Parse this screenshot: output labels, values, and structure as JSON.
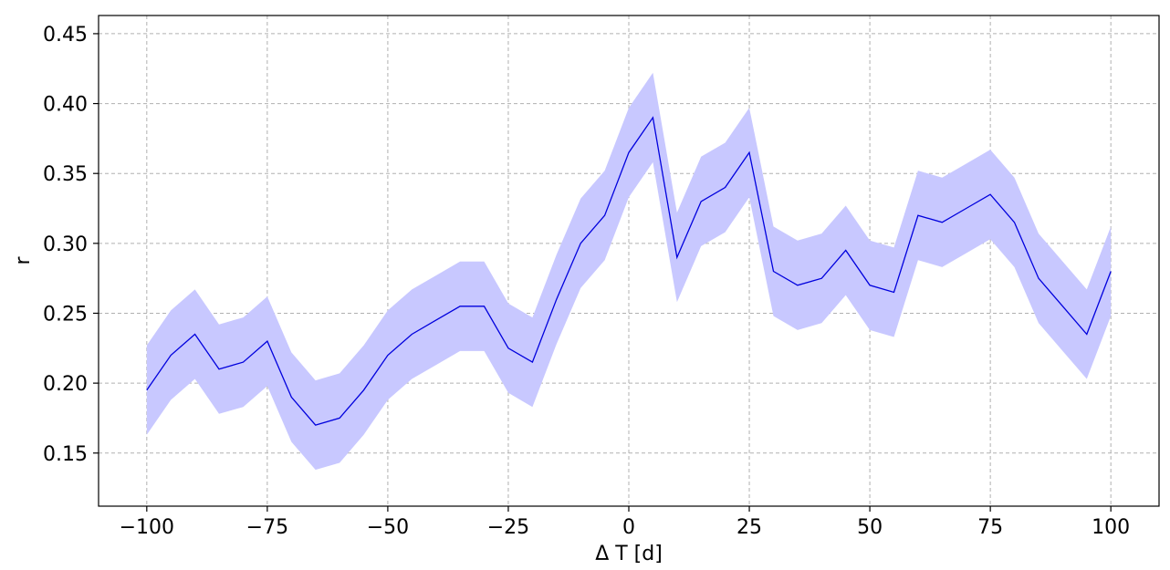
{
  "chart_data": {
    "type": "line",
    "xlabel": "Δ T [d]",
    "ylabel": "r",
    "xlim": [
      -110,
      110
    ],
    "ylim": [
      0.112,
      0.463
    ],
    "xticks": [
      -100,
      -75,
      -50,
      -25,
      0,
      25,
      50,
      75,
      100
    ],
    "xtick_labels": [
      "−100",
      "−75",
      "−50",
      "−25",
      "0",
      "25",
      "50",
      "75",
      "100"
    ],
    "yticks": [
      0.15,
      0.2,
      0.25,
      0.3,
      0.35,
      0.4,
      0.45
    ],
    "ytick_labels": [
      "0.15",
      "0.20",
      "0.25",
      "0.30",
      "0.35",
      "0.40",
      "0.45"
    ],
    "grid": true,
    "line_color": "#0000dd",
    "band_color": "#c8c8ff",
    "band_halfwidth": 0.032,
    "x": [
      -100,
      -95,
      -90,
      -85,
      -80,
      -75,
      -70,
      -65,
      -60,
      -55,
      -50,
      -45,
      -40,
      -35,
      -30,
      -25,
      -20,
      -15,
      -10,
      -5,
      0,
      5,
      10,
      15,
      20,
      25,
      30,
      35,
      40,
      45,
      50,
      55,
      60,
      65,
      70,
      75,
      80,
      85,
      90,
      95,
      100
    ],
    "y": [
      0.195,
      0.22,
      0.235,
      0.21,
      0.215,
      0.23,
      0.19,
      0.17,
      0.175,
      0.195,
      0.22,
      0.235,
      0.245,
      0.255,
      0.255,
      0.225,
      0.215,
      0.26,
      0.3,
      0.32,
      0.365,
      0.39,
      0.29,
      0.33,
      0.34,
      0.365,
      0.28,
      0.27,
      0.275,
      0.295,
      0.27,
      0.265,
      0.32,
      0.315,
      0.325,
      0.335,
      0.315,
      0.275,
      0.255,
      0.235,
      0.28
    ]
  }
}
